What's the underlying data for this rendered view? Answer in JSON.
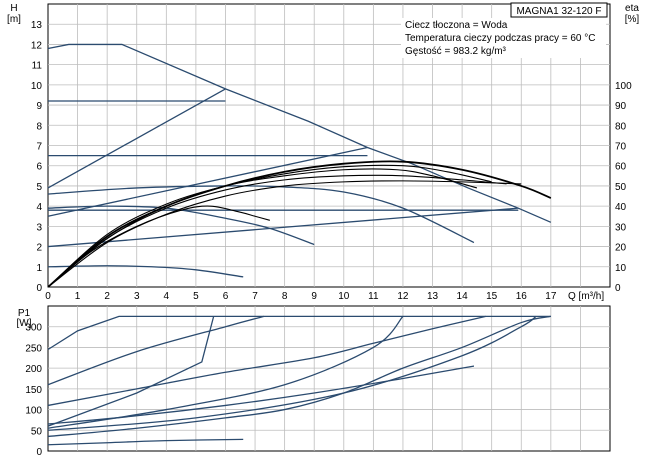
{
  "chart_data": [
    {
      "type": "line",
      "model_label": "MAGNA1 32-120 F",
      "info": [
        "Ciecz tłoczona = Woda",
        "Temperatura cieczy podczas pracy = 60 °C",
        "Gęstość = 983.2 kg/m³"
      ],
      "xlabel": "Q [m³/h]",
      "xlim": [
        0,
        19
      ],
      "xticks": [
        0,
        1,
        2,
        3,
        4,
        5,
        6,
        7,
        8,
        9,
        10,
        11,
        12,
        13,
        14,
        15,
        16,
        17
      ],
      "ylabel_left": "H",
      "ylabel_left_unit": "[m]",
      "ylim_left": [
        0,
        14
      ],
      "yticks_left": [
        0,
        1,
        2,
        3,
        4,
        5,
        6,
        7,
        8,
        9,
        10,
        11,
        12,
        13
      ],
      "ylabel_right": "eta",
      "ylabel_right_unit": "[%]",
      "ylim_right": [
        0,
        140
      ],
      "yticks_right": [
        0,
        10,
        20,
        30,
        40,
        50,
        60,
        70,
        80,
        90,
        100
      ],
      "grid": true,
      "head_curves": {
        "max_curve": [
          [
            0,
            11.8
          ],
          [
            0.7,
            12.0
          ],
          [
            2.5,
            12.0
          ],
          [
            6.0,
            9.8
          ],
          [
            8.8,
            8.2
          ],
          [
            10.8,
            6.9
          ],
          [
            12.3,
            6.1
          ],
          [
            14.2,
            4.9
          ],
          [
            15.9,
            3.9
          ],
          [
            17.0,
            3.2
          ]
        ],
        "proportional_pressure": [
          [
            0,
            4.9
          ],
          [
            6.0,
            9.8
          ]
        ],
        "proportional_pressure_2": [
          [
            0,
            3.5
          ],
          [
            10.8,
            6.9
          ]
        ],
        "proportional_pressure_3": [
          [
            0,
            2.0
          ],
          [
            15.9,
            3.9
          ]
        ],
        "constant_pressure_1": [
          [
            0,
            9.2
          ],
          [
            6.0,
            9.2
          ]
        ],
        "constant_pressure_2": [
          [
            0,
            6.5
          ],
          [
            10.8,
            6.5
          ]
        ],
        "constant_pressure_3": [
          [
            0,
            3.8
          ],
          [
            15.9,
            3.8
          ]
        ],
        "constant_curve_1": [
          [
            0,
            4.6
          ],
          [
            3.0,
            4.9
          ],
          [
            6.0,
            5.0
          ],
          [
            8.0,
            4.95
          ],
          [
            10.0,
            4.7
          ],
          [
            12.0,
            3.9
          ],
          [
            14.4,
            2.2
          ]
        ],
        "constant_curve_2": [
          [
            0,
            3.9
          ],
          [
            2.0,
            4.0
          ],
          [
            4.0,
            3.9
          ],
          [
            6.0,
            3.4
          ],
          [
            7.5,
            2.9
          ],
          [
            9.0,
            2.1
          ]
        ],
        "min_curve": [
          [
            0,
            1.0
          ],
          [
            2.0,
            1.05
          ],
          [
            3.5,
            1.0
          ],
          [
            5.0,
            0.85
          ],
          [
            6.6,
            0.5
          ]
        ]
      },
      "efficiency_curves": [
        [
          [
            0,
            0
          ],
          [
            2,
            25
          ],
          [
            4,
            40
          ],
          [
            6,
            50
          ],
          [
            8,
            57
          ],
          [
            10,
            61
          ],
          [
            12,
            62
          ],
          [
            14,
            58
          ],
          [
            16,
            50
          ],
          [
            17,
            44
          ]
        ],
        [
          [
            0,
            0
          ],
          [
            2,
            26
          ],
          [
            4,
            41
          ],
          [
            6,
            50
          ],
          [
            8,
            56
          ],
          [
            10,
            59.5
          ],
          [
            12,
            60
          ],
          [
            13.5,
            57
          ],
          [
            15,
            52
          ]
        ],
        [
          [
            0,
            0
          ],
          [
            2,
            24
          ],
          [
            4,
            40
          ],
          [
            6,
            50
          ],
          [
            8,
            55
          ],
          [
            10,
            58
          ],
          [
            11.8,
            58
          ],
          [
            13,
            55
          ],
          [
            14.5,
            49
          ]
        ],
        [
          [
            0,
            0
          ],
          [
            2,
            24
          ],
          [
            4,
            39
          ],
          [
            6,
            48
          ],
          [
            8,
            53
          ],
          [
            10,
            55
          ],
          [
            12,
            55
          ],
          [
            14,
            53
          ],
          [
            15.5,
            51
          ]
        ],
        [
          [
            0,
            0
          ],
          [
            1.5,
            18
          ],
          [
            3,
            30
          ],
          [
            4.5,
            38
          ],
          [
            5.5,
            40
          ],
          [
            6.5,
            37
          ],
          [
            7,
            35
          ],
          [
            7.5,
            33
          ]
        ],
        [
          [
            0,
            0
          ],
          [
            2,
            22
          ],
          [
            4,
            36
          ],
          [
            6,
            45
          ],
          [
            8,
            50
          ],
          [
            10,
            52
          ],
          [
            12,
            52.5
          ],
          [
            14,
            52
          ],
          [
            16,
            51
          ]
        ]
      ]
    },
    {
      "type": "line",
      "ylabel": "P1",
      "ylabel_unit": "[W]",
      "xlim": [
        0,
        19
      ],
      "ylim": [
        0,
        350
      ],
      "yticks": [
        0,
        50,
        100,
        150,
        200,
        250,
        300
      ],
      "grid": true,
      "power_curves": {
        "max_curve": [
          [
            0,
            245
          ],
          [
            1,
            290
          ],
          [
            2.4,
            325
          ],
          [
            17,
            325
          ]
        ],
        "proportional_1": [
          [
            0,
            160
          ],
          [
            3,
            240
          ],
          [
            6,
            300
          ],
          [
            7.3,
            325
          ]
        ],
        "constant_1": [
          [
            0,
            110
          ],
          [
            3,
            150
          ],
          [
            6,
            190
          ],
          [
            9,
            225
          ],
          [
            11,
            260
          ],
          [
            13,
            295
          ],
          [
            14.8,
            325
          ]
        ],
        "constant_2": [
          [
            0,
            65
          ],
          [
            3,
            85
          ],
          [
            6,
            110
          ],
          [
            9,
            140
          ],
          [
            12,
            175
          ],
          [
            14,
            200
          ],
          [
            14.4,
            205
          ]
        ],
        "proportional_2": [
          [
            0,
            60
          ],
          [
            3,
            140
          ],
          [
            5.2,
            215
          ],
          [
            5.6,
            325
          ]
        ],
        "proportional_3": [
          [
            0,
            55
          ],
          [
            4,
            100
          ],
          [
            8,
            160
          ],
          [
            11,
            250
          ],
          [
            12,
            325
          ]
        ],
        "proportional_4": [
          [
            0,
            50
          ],
          [
            5,
            80
          ],
          [
            10,
            140
          ],
          [
            14,
            230
          ],
          [
            16,
            300
          ],
          [
            16.5,
            325
          ]
        ],
        "constant_3": [
          [
            0,
            35
          ],
          [
            3,
            55
          ],
          [
            6,
            80
          ],
          [
            8,
            100
          ],
          [
            10,
            140
          ],
          [
            12,
            200
          ],
          [
            14,
            250
          ],
          [
            16,
            310
          ],
          [
            17,
            325
          ]
        ],
        "min_curve": [
          [
            0,
            15
          ],
          [
            2,
            20
          ],
          [
            4,
            25
          ],
          [
            6.6,
            28
          ]
        ]
      }
    }
  ]
}
